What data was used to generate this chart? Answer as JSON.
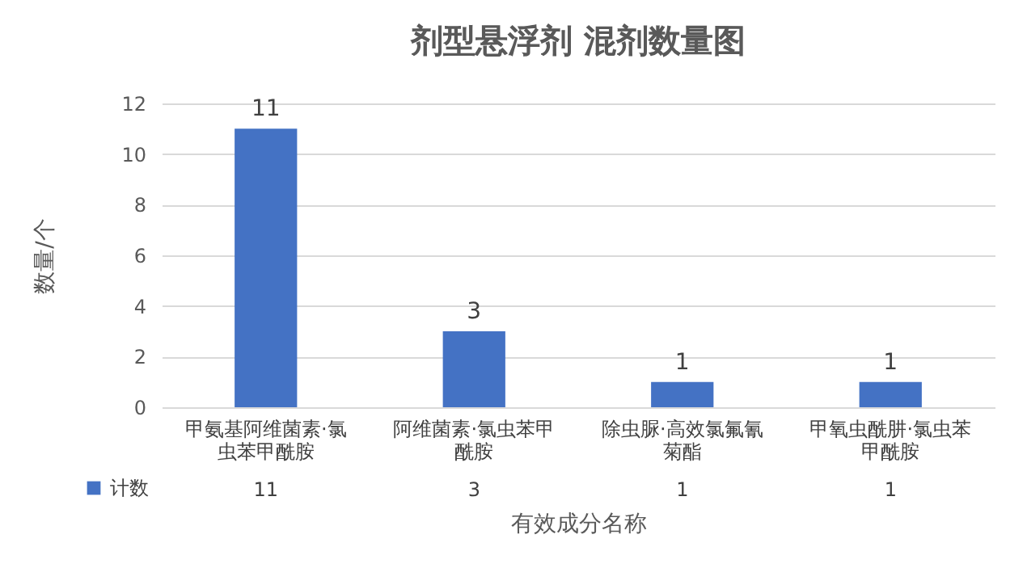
{
  "chart_data": {
    "type": "bar",
    "title": "剂型悬浮剂 混剂数量图",
    "xlabel": "有效成分名称",
    "ylabel": "数量/个",
    "categories": [
      "甲氨基阿维菌素·氯虫苯甲酰胺",
      "阿维菌素·氯虫苯甲酰胺",
      "除虫脲·高效氯氟氰菊酯",
      "甲氧虫酰肼·氯虫苯甲酰胺"
    ],
    "series": [
      {
        "name": "计数",
        "color": "#4472c4",
        "values": [
          11,
          3,
          1,
          1
        ],
        "value_labels": [
          "11",
          "3",
          "1",
          "1"
        ]
      }
    ],
    "ylim": [
      0,
      12
    ],
    "yticks": [
      0,
      2,
      4,
      6,
      8,
      10,
      12
    ],
    "grid": "y",
    "data_labels": true,
    "legend": "bottom"
  }
}
